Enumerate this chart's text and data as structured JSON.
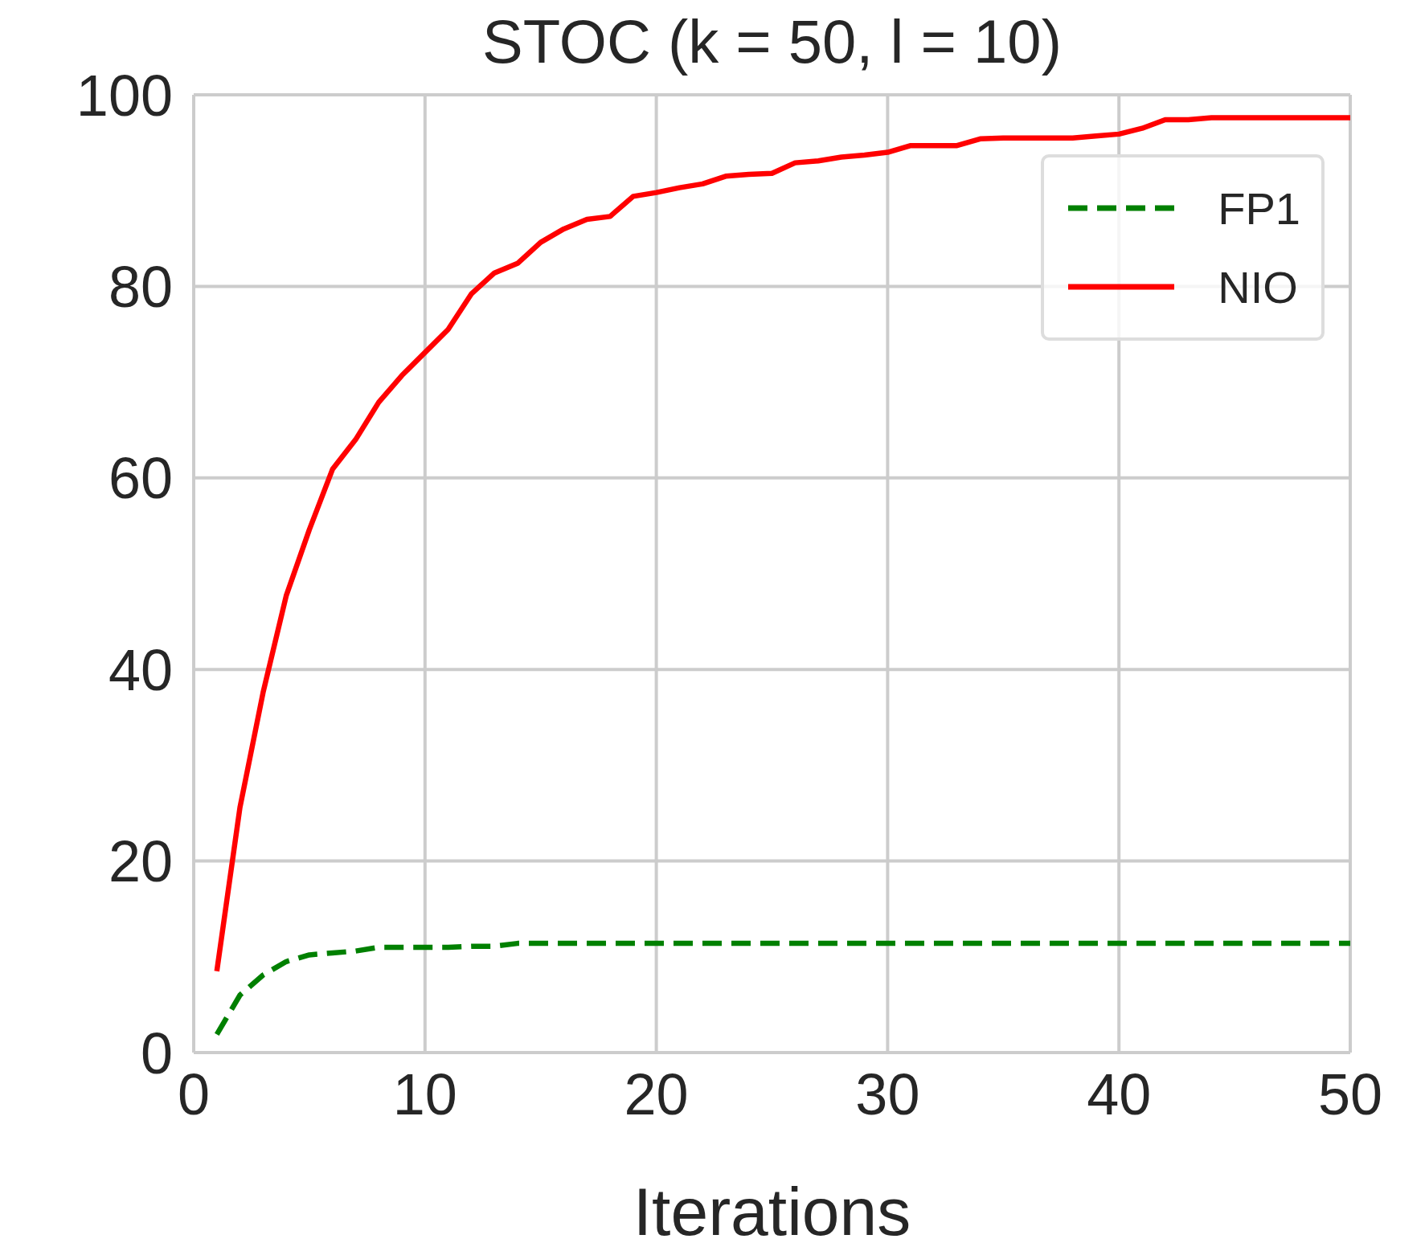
{
  "chart_data": {
    "type": "line",
    "title": "STOC (k = 50, l = 10)",
    "xlabel": "Iterations",
    "x": [
      1,
      2,
      3,
      4,
      5,
      6,
      7,
      8,
      9,
      10,
      11,
      12,
      13,
      14,
      15,
      16,
      17,
      18,
      19,
      20,
      21,
      22,
      23,
      24,
      25,
      26,
      27,
      28,
      29,
      30,
      31,
      32,
      33,
      34,
      35,
      36,
      37,
      38,
      39,
      40,
      41,
      42,
      43,
      44,
      45,
      46,
      47,
      48,
      49,
      50
    ],
    "series": [
      {
        "name": "FP1",
        "color": "#008000",
        "line_style": "dashed",
        "values": [
          1.9,
          6.0,
          8.1,
          9.5,
          10.2,
          10.4,
          10.6,
          11.0,
          11.0,
          11.0,
          11.0,
          11.1,
          11.1,
          11.4,
          11.4,
          11.4,
          11.4,
          11.4,
          11.4,
          11.4,
          11.4,
          11.4,
          11.4,
          11.4,
          11.4,
          11.4,
          11.4,
          11.4,
          11.4,
          11.4,
          11.4,
          11.4,
          11.4,
          11.4,
          11.4,
          11.4,
          11.4,
          11.4,
          11.4,
          11.4,
          11.4,
          11.4,
          11.4,
          11.4,
          11.4,
          11.4,
          11.4,
          11.4,
          11.4,
          11.4
        ]
      },
      {
        "name": "NIO",
        "color": "#ff0000",
        "line_style": "solid",
        "values": [
          8.5,
          25.6,
          37.6,
          47.7,
          54.6,
          60.9,
          64.0,
          67.9,
          70.7,
          73.1,
          75.5,
          79.2,
          81.4,
          82.4,
          84.6,
          86.0,
          87.0,
          87.3,
          89.4,
          89.8,
          90.3,
          90.7,
          91.5,
          91.7,
          91.8,
          92.9,
          93.1,
          93.5,
          93.7,
          94.0,
          94.7,
          94.7,
          94.7,
          95.4,
          95.5,
          95.5,
          95.5,
          95.5,
          95.7,
          95.9,
          96.5,
          97.4,
          97.4,
          97.6,
          97.6,
          97.6,
          97.6,
          97.6,
          97.6,
          97.6
        ]
      }
    ],
    "xlim": [
      0,
      50
    ],
    "xticks": [
      0,
      10,
      20,
      30,
      40,
      50
    ],
    "ylim": [
      0,
      100
    ],
    "yticks": [
      0,
      20,
      40,
      60,
      80,
      100
    ],
    "grid": true,
    "legend": "top right",
    "marker": "none"
  }
}
